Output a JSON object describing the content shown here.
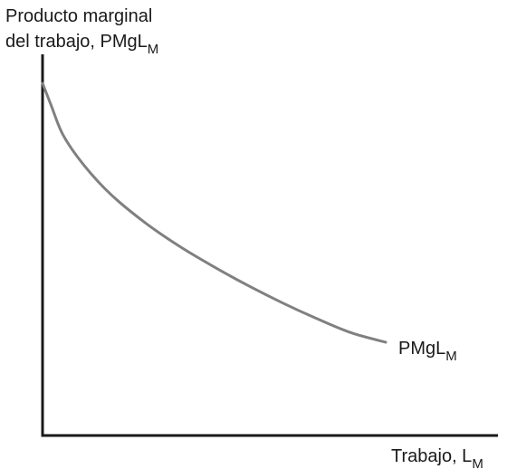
{
  "chart_data": {
    "type": "line",
    "title": "",
    "ylabel": {
      "line1": "Producto marginal",
      "line2_main": "del trabajo, PMgL",
      "line2_sub": "M"
    },
    "xlabel": {
      "main": "Trabajo, L",
      "sub": "M"
    },
    "ticks": "none",
    "grid": false,
    "xlim": [
      0,
      10
    ],
    "ylim": [
      0,
      10
    ],
    "series": [
      {
        "name_main": "PMgL",
        "name_sub": "M",
        "label_position": "end-right",
        "color": "#808080",
        "x": [
          0,
          0.25,
          0.6,
          1.2,
          2.0,
          3.0,
          4.0,
          5.0,
          6.0,
          7.0,
          8.0,
          9.0,
          10.0
        ],
        "y": [
          10.0,
          9.3,
          8.35,
          7.4,
          6.45,
          5.55,
          4.8,
          4.15,
          3.55,
          3.0,
          2.5,
          2.05,
          1.75
        ]
      }
    ],
    "axis_color": "#1a1a1a"
  }
}
